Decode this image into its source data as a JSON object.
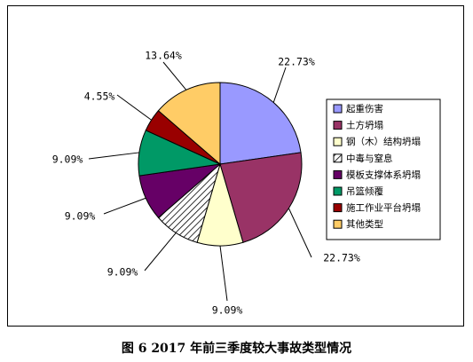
{
  "caption": "图 6   2017 年前三季度较大事故类型情况",
  "chart_data": {
    "type": "pie",
    "categories": [
      "起重伤害",
      "土方坍塌",
      "钢（木）结构坍塌",
      "中毒与窒息",
      "模板支撑体系坍塌",
      "吊篮倾覆",
      "施工作业平台坍塌",
      "其他类型"
    ],
    "values": [
      22.73,
      22.73,
      9.09,
      9.09,
      9.09,
      9.09,
      4.55,
      13.64
    ],
    "labels": [
      "22.73%",
      "22.73%",
      "9.09%",
      "9.09%",
      "9.09%",
      "9.09%",
      "4.55%",
      "13.64%"
    ],
    "colors": [
      "#9999ff",
      "#993366",
      "#ffffcc",
      "hatch",
      "#660066",
      "#009966",
      "#990000",
      "#ffcc66"
    ],
    "legend_position": "right"
  }
}
